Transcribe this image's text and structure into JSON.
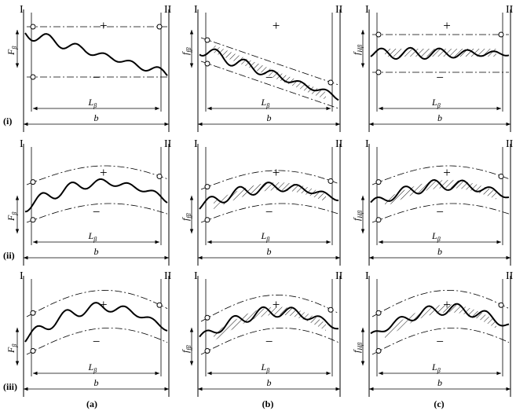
{
  "sections": {
    "left": "I",
    "right": "II"
  },
  "signs": {
    "plus": "+",
    "minus": "−"
  },
  "dims": {
    "L": "L",
    "L_sub": "β",
    "b": "b"
  },
  "deviations": {
    "F": "F",
    "F_sub": "β",
    "f": "f",
    "f_sub": "fβ",
    "fH": "f",
    "fH_sub": "Hβ"
  },
  "rows": [
    "(i)",
    "(ii)",
    "(iii)"
  ],
  "columns": [
    "(a)",
    "(b)",
    "(c)"
  ]
}
